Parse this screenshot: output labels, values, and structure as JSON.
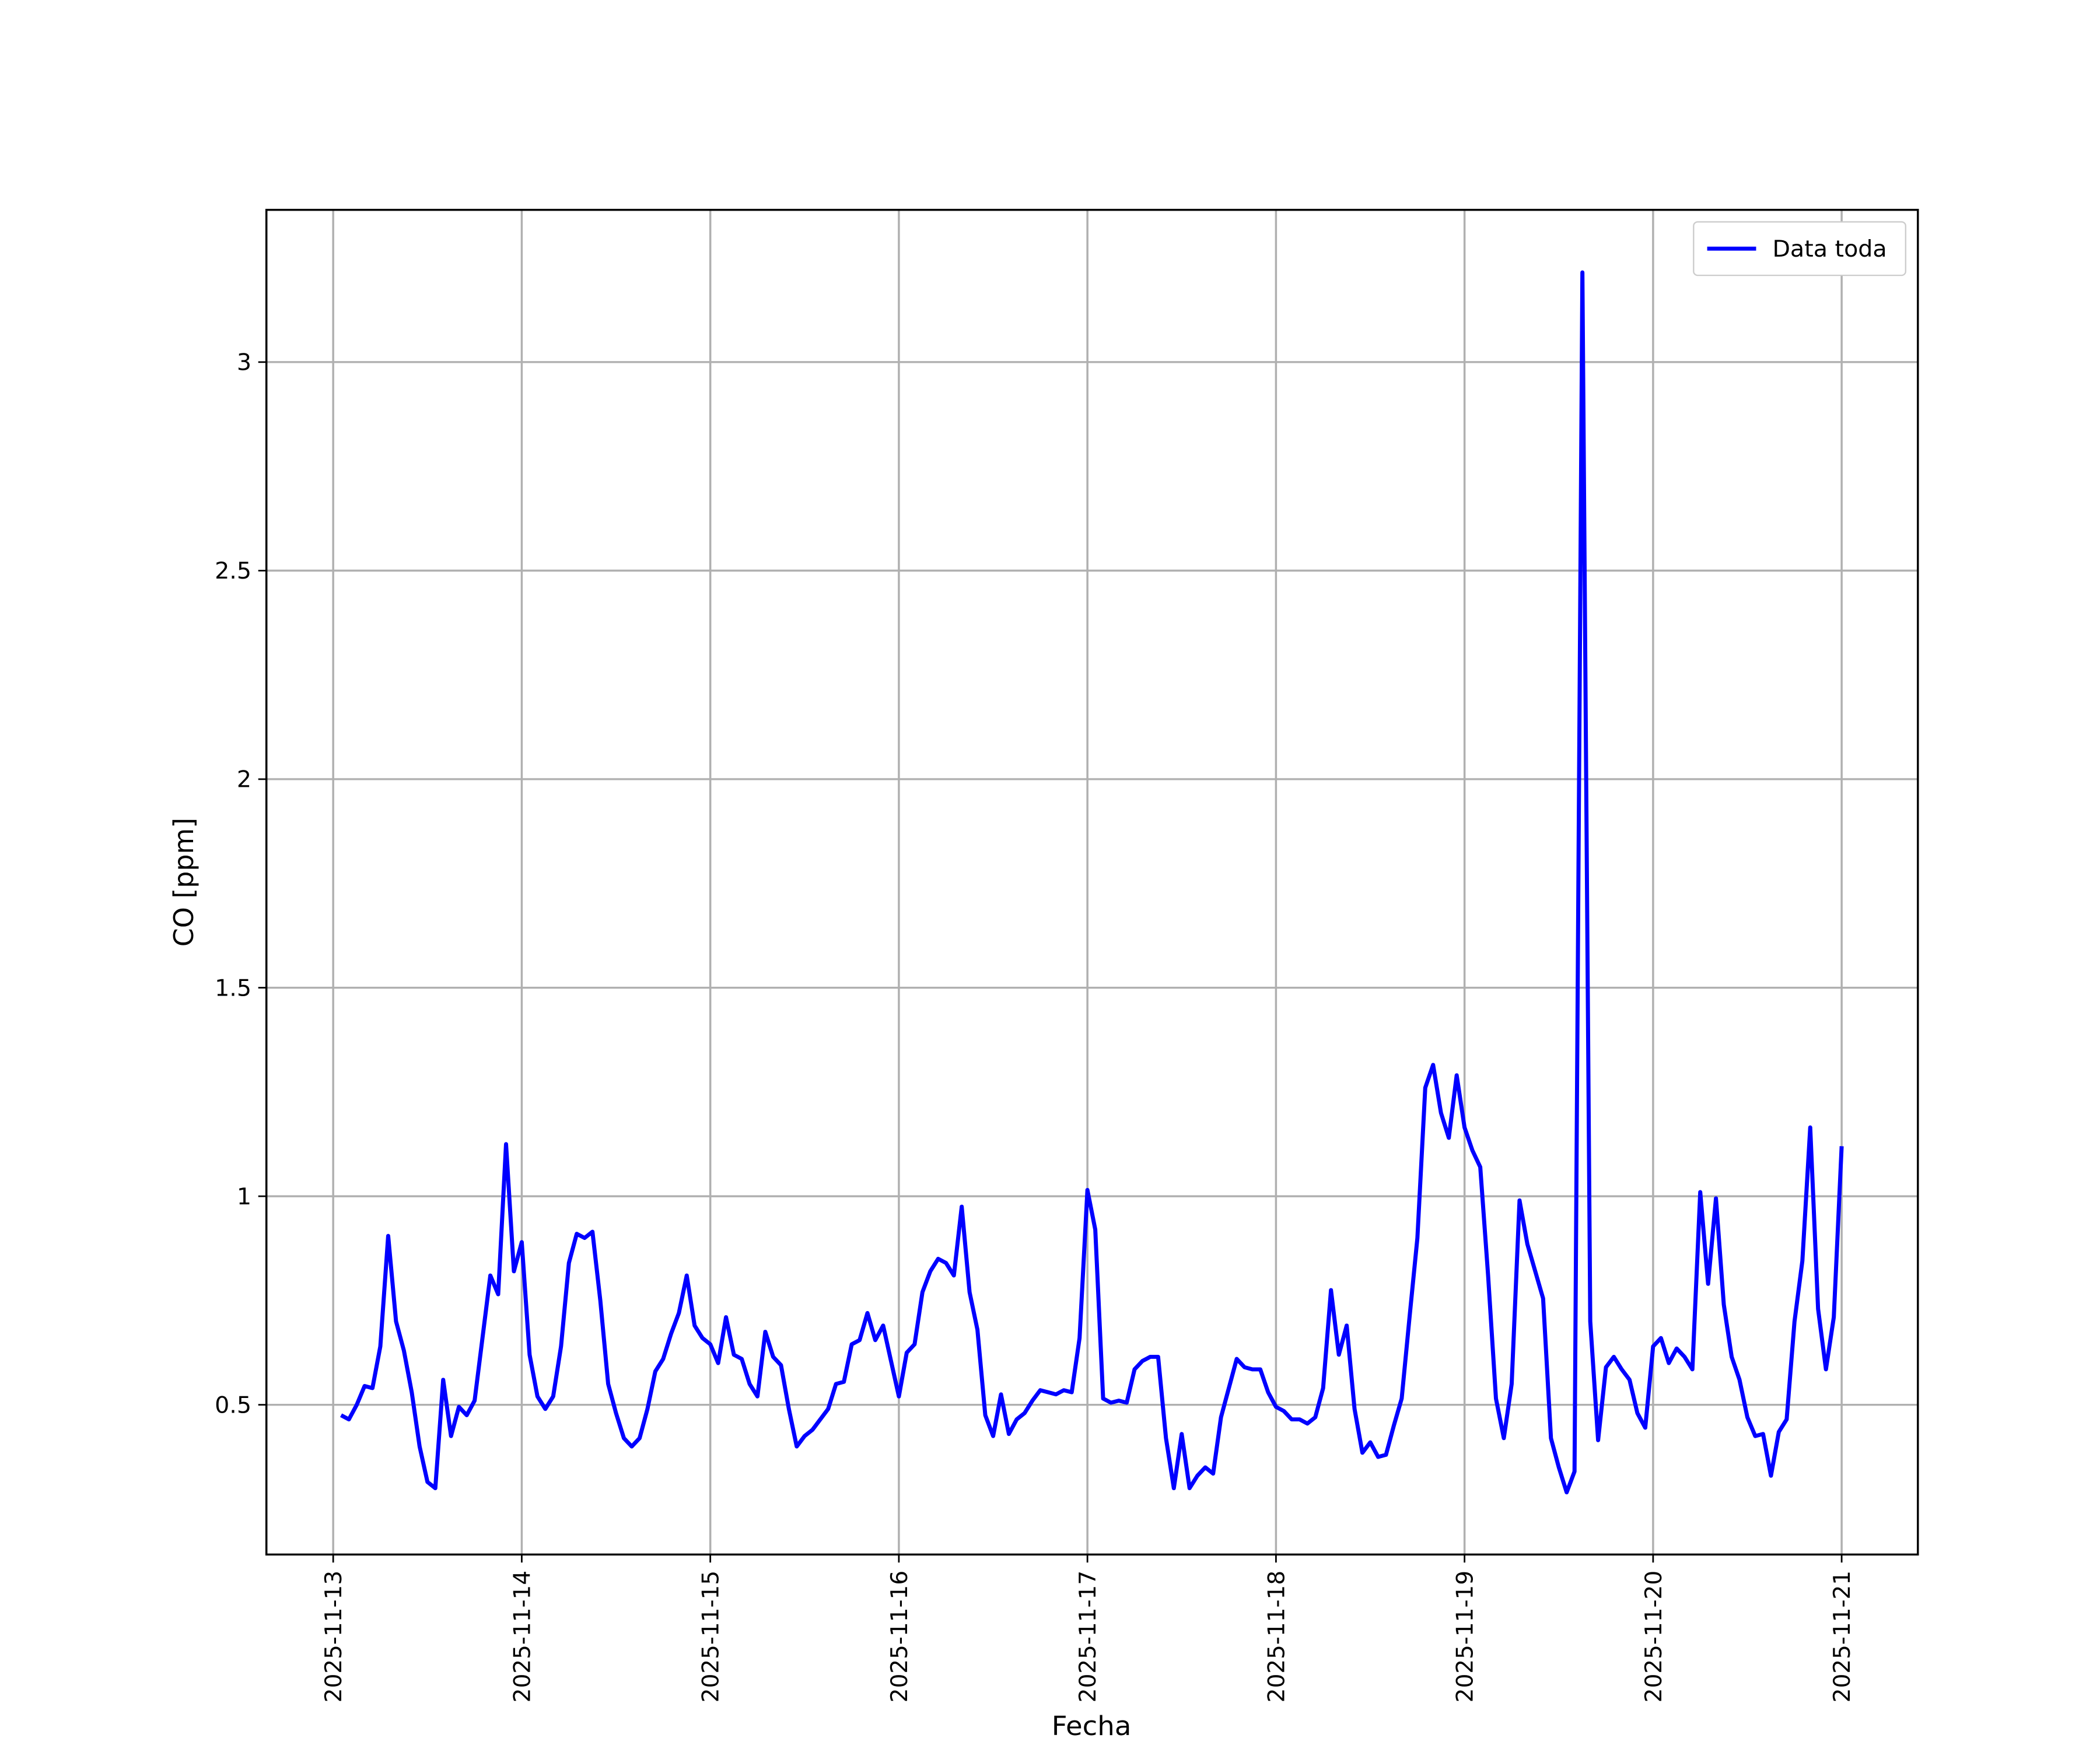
{
  "chart_data": {
    "type": "line",
    "x_label": "Fecha",
    "y_label": "CO [ppm]",
    "x": [
      1,
      2,
      3,
      4,
      5,
      6,
      7,
      8,
      9,
      10,
      11,
      12,
      13,
      14,
      15,
      16,
      17,
      18,
      19,
      20,
      21,
      22,
      23,
      24,
      25,
      26,
      27,
      28,
      29,
      30,
      31,
      32,
      33,
      34,
      35,
      36,
      37,
      38,
      39,
      40,
      41,
      42,
      43,
      44,
      45,
      46,
      47,
      48,
      49,
      50,
      51,
      52,
      53,
      54,
      55,
      56,
      57,
      58,
      59,
      60,
      61,
      62,
      63,
      64,
      65,
      66,
      67,
      68,
      69,
      70,
      71,
      72,
      73,
      74,
      75,
      76,
      77,
      78,
      79,
      80,
      81,
      82,
      83,
      84,
      85,
      86,
      87,
      88,
      89,
      90,
      91,
      92,
      93,
      94,
      95,
      96,
      97,
      98,
      99,
      100,
      101,
      102,
      103,
      104,
      105,
      106,
      107,
      108,
      109,
      110,
      111,
      112,
      113,
      114,
      115,
      116,
      117,
      118,
      119,
      120,
      121,
      122,
      123,
      124,
      125,
      126,
      127,
      128,
      129,
      130,
      131,
      132,
      133,
      134,
      135,
      136,
      137,
      138,
      139,
      140,
      141,
      142,
      143,
      144,
      145,
      146,
      147,
      148,
      149,
      150,
      151,
      152,
      153,
      154,
      155,
      156,
      157,
      158,
      159,
      160,
      161,
      162,
      163,
      164,
      165,
      166,
      167,
      168,
      169,
      170,
      171,
      172,
      173,
      174,
      175,
      176,
      177,
      178,
      179,
      180,
      181,
      182,
      183,
      184,
      185,
      186,
      187,
      188,
      189,
      190,
      191,
      192
    ],
    "series": [
      {
        "name": "Data toda",
        "color": "#0000ff",
        "values": [
          0.475,
          0.465,
          0.5,
          0.545,
          0.54,
          0.64,
          0.905,
          0.7,
          0.63,
          0.53,
          0.4,
          0.315,
          0.3,
          0.56,
          0.425,
          0.495,
          0.475,
          0.51,
          0.66,
          0.81,
          0.765,
          1.125,
          0.82,
          0.89,
          0.62,
          0.52,
          0.49,
          0.52,
          0.64,
          0.84,
          0.91,
          0.9,
          0.915,
          0.75,
          0.55,
          0.48,
          0.42,
          0.4,
          0.42,
          0.49,
          0.58,
          0.61,
          0.67,
          0.72,
          0.81,
          0.69,
          0.66,
          0.645,
          0.6,
          0.71,
          0.62,
          0.61,
          0.55,
          0.52,
          0.675,
          0.615,
          0.595,
          0.49,
          0.4,
          0.425,
          0.44,
          0.465,
          0.49,
          0.55,
          0.555,
          0.645,
          0.655,
          0.72,
          0.655,
          0.69,
          0.605,
          0.52,
          0.625,
          0.645,
          0.77,
          0.82,
          0.85,
          0.84,
          0.81,
          0.975,
          0.77,
          0.68,
          0.475,
          0.425,
          0.525,
          0.43,
          0.465,
          0.48,
          0.51,
          0.535,
          0.53,
          0.525,
          0.535,
          0.53,
          0.66,
          1.015,
          0.92,
          0.515,
          0.505,
          0.51,
          0.505,
          0.585,
          0.605,
          0.615,
          0.615,
          0.42,
          0.3,
          0.43,
          0.3,
          0.33,
          0.35,
          0.335,
          0.47,
          0.54,
          0.61,
          0.59,
          0.585,
          0.585,
          0.53,
          0.495,
          0.485,
          0.465,
          0.465,
          0.455,
          0.47,
          0.54,
          0.775,
          0.62,
          0.69,
          0.49,
          0.385,
          0.41,
          0.375,
          0.38,
          0.45,
          0.515,
          0.71,
          0.9,
          1.26,
          1.315,
          1.2,
          1.14,
          1.29,
          1.165,
          1.11,
          1.07,
          0.81,
          0.515,
          0.42,
          0.55,
          0.99,
          0.885,
          0.82,
          0.755,
          0.42,
          0.35,
          0.29,
          0.34,
          3.215,
          0.7,
          0.415,
          0.59,
          0.615,
          0.585,
          0.56,
          0.48,
          0.445,
          0.64,
          0.66,
          0.6,
          0.635,
          0.615,
          0.585,
          1.01,
          0.79,
          0.995,
          0.74,
          0.615,
          0.56,
          0.47,
          0.425,
          0.43,
          0.33,
          0.435,
          0.465,
          0.7,
          0.845,
          1.165,
          0.73,
          0.585,
          0.71,
          1.12
        ]
      }
    ],
    "xlim": [
      -8.5,
      201.7
    ],
    "ylim": [
      0.141,
      3.365
    ],
    "xticks": [
      {
        "value": 0,
        "label": "2025-11-13"
      },
      {
        "value": 24,
        "label": "2025-11-14"
      },
      {
        "value": 48,
        "label": "2025-11-15"
      },
      {
        "value": 72,
        "label": "2025-11-16"
      },
      {
        "value": 96,
        "label": "2025-11-17"
      },
      {
        "value": 120,
        "label": "2025-11-18"
      },
      {
        "value": 144,
        "label": "2025-11-19"
      },
      {
        "value": 168,
        "label": "2025-11-20"
      },
      {
        "value": 192,
        "label": "2025-11-21"
      }
    ],
    "yticks": [
      0.5,
      1.0,
      1.5,
      2.0,
      2.5,
      3.0
    ],
    "grid": true,
    "legend": "upper right"
  }
}
